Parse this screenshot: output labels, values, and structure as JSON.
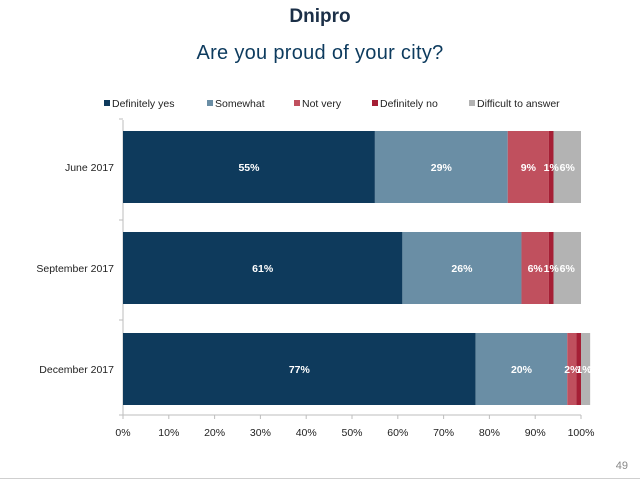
{
  "page": {
    "title": "Dnipro",
    "subtitle": "Are you proud of your city?",
    "page_number": "49"
  },
  "colors": {
    "title": "#1b2f47",
    "subtitle": "#0d3b5e"
  },
  "chart_data": {
    "type": "bar",
    "orientation": "horizontal",
    "stacked": true,
    "percent_axis": true,
    "legend_position": "top",
    "grid": false,
    "xlim": [
      0,
      100
    ],
    "x_ticks": [
      "0%",
      "10%",
      "20%",
      "30%",
      "40%",
      "50%",
      "60%",
      "70%",
      "80%",
      "90%",
      "100%"
    ],
    "categories": [
      "June 2017",
      "September 2017",
      "December 2017"
    ],
    "series": [
      {
        "name": "Definitely yes",
        "color": "#0e3a5c",
        "values": [
          55,
          61,
          77
        ],
        "labels": [
          "55%",
          "61%",
          "77%"
        ]
      },
      {
        "name": "Somewhat",
        "color": "#6a8ea5",
        "values": [
          29,
          26,
          20
        ],
        "labels": [
          "29%",
          "26%",
          "20%"
        ]
      },
      {
        "name": "Not very",
        "color": "#c0505e",
        "values": [
          9,
          6,
          2
        ],
        "labels": [
          "9%",
          "6%",
          "2%"
        ]
      },
      {
        "name": "Definitely no",
        "color": "#a51f35",
        "values": [
          1,
          1,
          1
        ],
        "labels": [
          "1%",
          "1%",
          "1%"
        ]
      },
      {
        "name": "Difficult to answer",
        "color": "#b3b3b3",
        "values": [
          6,
          6,
          2
        ],
        "labels": [
          "6%",
          "6%",
          "2%"
        ]
      }
    ]
  }
}
